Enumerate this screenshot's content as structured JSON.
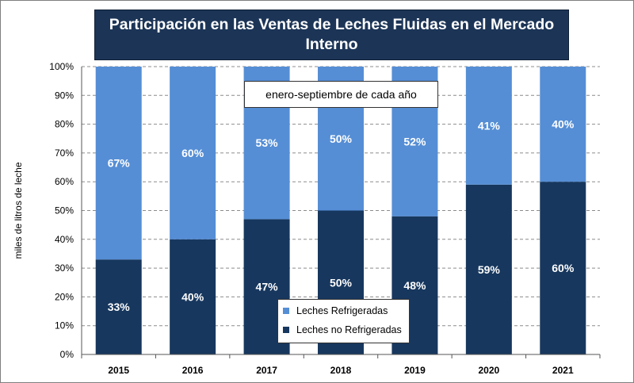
{
  "chart_data": {
    "type": "bar",
    "stacked": true,
    "normalized": true,
    "title": "Participación en las Ventas de Leches Fluidas en el Mercado Interno",
    "subtitle_note": "enero-septiembre de cada año",
    "xlabel": "",
    "ylabel": "miles de litros de leche",
    "ylim": [
      0,
      100
    ],
    "yticks": [
      "0%",
      "10%",
      "20%",
      "30%",
      "40%",
      "50%",
      "60%",
      "70%",
      "80%",
      "90%",
      "100%"
    ],
    "grid": true,
    "legend_position": "bottom-center",
    "categories": [
      "2015",
      "2016",
      "2017",
      "2018",
      "2019",
      "2020",
      "2021"
    ],
    "series": [
      {
        "name": "Leches no Refrigeradas",
        "values": [
          33,
          40,
          47,
          50,
          48,
          59,
          60
        ],
        "labels": [
          "33%",
          "40%",
          "47%",
          "50%",
          "48%",
          "59%",
          "60%"
        ],
        "color": "#17375e"
      },
      {
        "name": "Leches Refrigeradas",
        "values": [
          67,
          60,
          53,
          50,
          52,
          41,
          40
        ],
        "labels": [
          "67%",
          "60%",
          "53%",
          "50%",
          "52%",
          "41%",
          "40%"
        ],
        "color": "#558ed5"
      }
    ]
  },
  "colors": {
    "title_background": "#1c3557",
    "plot_background": "#ffffff"
  }
}
